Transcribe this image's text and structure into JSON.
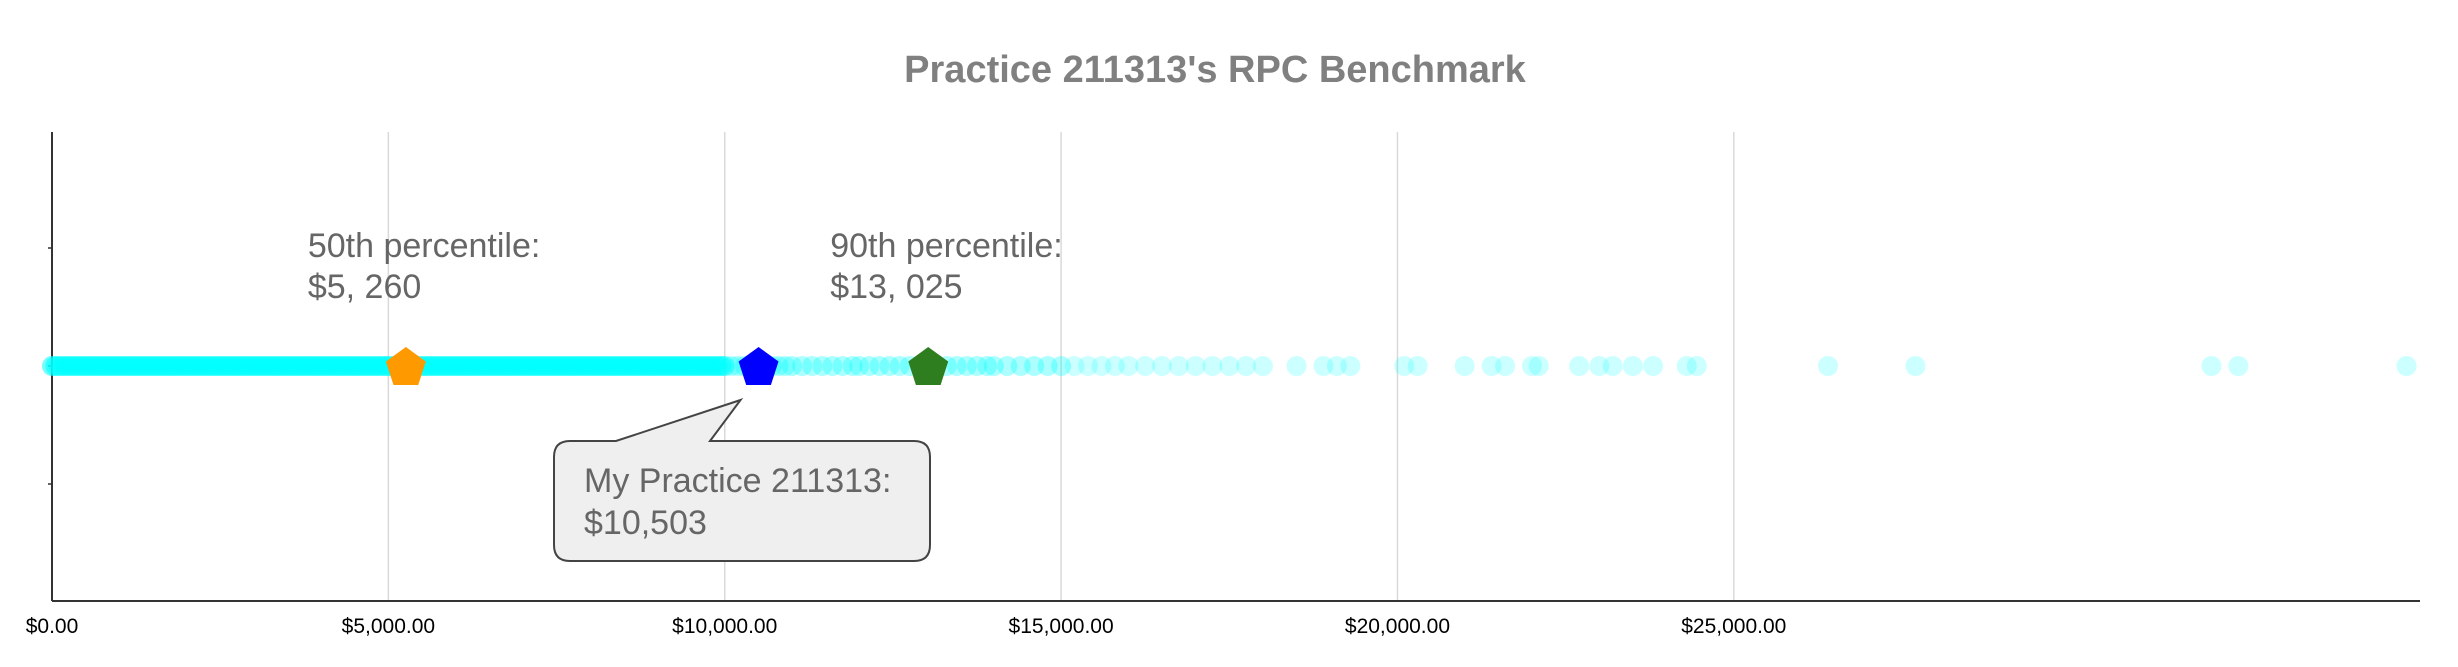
{
  "chart_data": {
    "type": "scatter",
    "title": "Practice 211313's RPC Benchmark",
    "xlim": [
      0,
      35200
    ],
    "xticks": [
      {
        "value": 0,
        "label": "$0.00"
      },
      {
        "value": 5000,
        "label": "$5,000.00"
      },
      {
        "value": 10000,
        "label": "$10,000.00"
      },
      {
        "value": 15000,
        "label": "$15,000.00"
      },
      {
        "value": 20000,
        "label": "$20,000.00"
      },
      {
        "value": 25000,
        "label": "$25,000.00"
      }
    ],
    "grid": true,
    "distribution": {
      "color": "#00ffff",
      "values": [
        0,
        50,
        100,
        150,
        200,
        250,
        300,
        350,
        400,
        450,
        500,
        550,
        600,
        650,
        700,
        750,
        800,
        850,
        900,
        950,
        1000,
        1050,
        1100,
        1150,
        1200,
        1250,
        1300,
        1350,
        1400,
        1450,
        1500,
        1550,
        1600,
        1650,
        1700,
        1750,
        1800,
        1850,
        1900,
        1950,
        2000,
        2050,
        2100,
        2150,
        2200,
        2250,
        2300,
        2350,
        2400,
        2450,
        2500,
        2550,
        2600,
        2650,
        2700,
        2750,
        2800,
        2850,
        2900,
        2950,
        3000,
        3050,
        3100,
        3150,
        3200,
        3250,
        3300,
        3350,
        3400,
        3450,
        3500,
        3550,
        3600,
        3650,
        3700,
        3750,
        3800,
        3850,
        3900,
        3950,
        4000,
        4050,
        4100,
        4150,
        4200,
        4250,
        4300,
        4350,
        4400,
        4450,
        4500,
        4550,
        4600,
        4650,
        4700,
        4750,
        4800,
        4850,
        4900,
        4950,
        5000,
        5050,
        5100,
        5150,
        5200,
        5250,
        5300,
        5350,
        5400,
        5450,
        5500,
        5550,
        5600,
        5650,
        5700,
        5750,
        5800,
        5850,
        5900,
        5950,
        6000,
        6050,
        6100,
        6150,
        6200,
        6250,
        6300,
        6350,
        6400,
        6450,
        6500,
        6550,
        6600,
        6650,
        6700,
        6750,
        6800,
        6850,
        6900,
        6950,
        7000,
        7050,
        7100,
        7150,
        7200,
        7250,
        7300,
        7350,
        7400,
        7450,
        7500,
        7550,
        7600,
        7650,
        7700,
        7750,
        7800,
        7850,
        7900,
        7950,
        8000,
        8050,
        8100,
        8150,
        8200,
        8250,
        8300,
        8350,
        8400,
        8450,
        8500,
        8550,
        8600,
        8650,
        8700,
        8750,
        8800,
        8850,
        8900,
        8950,
        9000,
        9050,
        9100,
        9150,
        9200,
        9250,
        9300,
        9350,
        9400,
        9450,
        9500,
        9550,
        9600,
        9650,
        9700,
        9750,
        9800,
        9850,
        9900,
        9950,
        10000,
        10100,
        10200,
        10300,
        10400,
        10500,
        10600,
        10700,
        10800,
        10900,
        11000,
        11150,
        11300,
        11450,
        11600,
        11750,
        11900,
        12000,
        12150,
        12300,
        12450,
        12600,
        12750,
        12900,
        13000,
        13150,
        13300,
        13450,
        13600,
        13750,
        13900,
        14000,
        14200,
        14400,
        14600,
        14800,
        15000,
        15200,
        15400,
        15600,
        15800,
        16000,
        16250,
        16500,
        16750,
        17000,
        17250,
        17500,
        17750,
        18000,
        18500,
        18900,
        19100,
        19300,
        20100,
        20300,
        21000,
        21400,
        21600,
        22000,
        22100,
        22700,
        23000,
        23200,
        23500,
        23800,
        24300,
        24450,
        26400,
        27700,
        32100,
        32500,
        35000
      ]
    },
    "markers": [
      {
        "name": "50th percentile",
        "label_line1": "50th percentile:",
        "label_line2": "$5, 260",
        "value": 5260,
        "color": "#ff9900",
        "shape": "pentagon"
      },
      {
        "name": "My Practice",
        "label_line1": "My Practice 211313:",
        "label_line2": "$10,503",
        "value": 10503,
        "color": "#0000ff",
        "shape": "pentagon",
        "callout": true
      },
      {
        "name": "90th percentile",
        "label_line1": "90th percentile:",
        "label_line2": "$13, 025",
        "value": 13025,
        "color": "#2e7d1e",
        "shape": "pentagon"
      }
    ]
  }
}
